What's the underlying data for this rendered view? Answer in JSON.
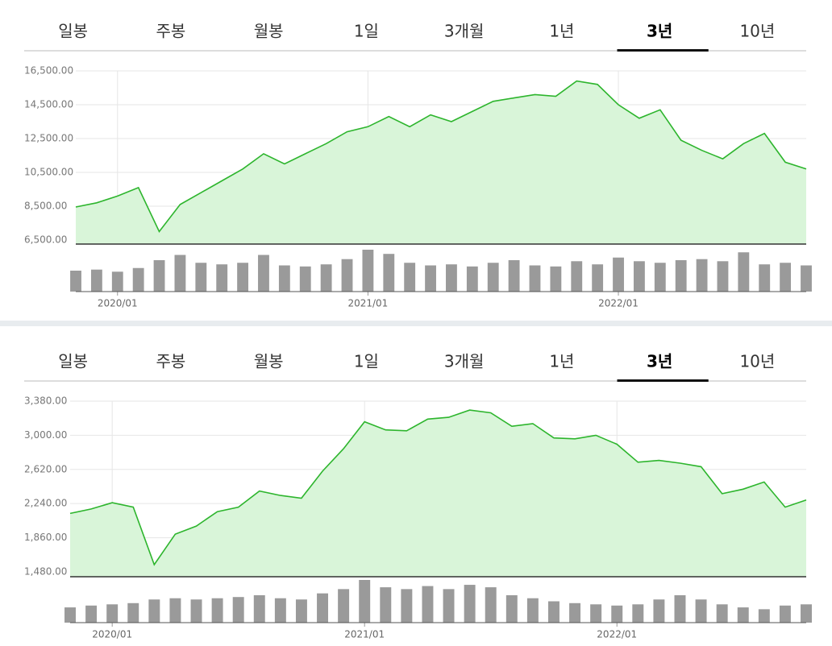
{
  "chart_data": [
    {
      "type": "line",
      "tabs": [
        "일봉",
        "주봉",
        "월봉",
        "1일",
        "3개월",
        "1년",
        "3년",
        "10년"
      ],
      "active_tab": 6,
      "categories": [
        null,
        null,
        "2020/01",
        null,
        null,
        null,
        null,
        null,
        null,
        null,
        null,
        null,
        null,
        null,
        "2021/01",
        null,
        null,
        null,
        null,
        null,
        null,
        null,
        null,
        null,
        null,
        null,
        "2022/01",
        null,
        null,
        null,
        null,
        null,
        null,
        null,
        null,
        null
      ],
      "values": [
        8450,
        8700,
        9100,
        9600,
        7000,
        8600,
        9300,
        10000,
        10700,
        11600,
        11000,
        11600,
        12200,
        12900,
        13200,
        13800,
        13200,
        13900,
        13500,
        14100,
        14700,
        14900,
        15100,
        15000,
        15900,
        15700,
        14500,
        13700,
        14200,
        12400,
        11800,
        11300,
        12200,
        12800,
        11100,
        10700
      ],
      "volumes": [
        40,
        42,
        38,
        45,
        60,
        70,
        55,
        52,
        55,
        70,
        50,
        48,
        52,
        62,
        80,
        72,
        55,
        50,
        52,
        48,
        55,
        60,
        50,
        48,
        58,
        52,
        65,
        58,
        55,
        60,
        62,
        58,
        75,
        52,
        55,
        50
      ],
      "color": "#2db52d",
      "fill_color": "#d9f5d9",
      "ylim": [
        6260,
        17450
      ],
      "yticks": [
        {
          "value": 6500,
          "label": "6,500.00"
        },
        {
          "value": 8500,
          "label": "8,500.00"
        },
        {
          "value": 10500,
          "label": "10,500.00"
        },
        {
          "value": 12500,
          "label": "12,500.00"
        },
        {
          "value": 14500,
          "label": "14,500.00"
        },
        {
          "value": 16500,
          "label": "16,500.00"
        }
      ],
      "grid": true
    },
    {
      "type": "line",
      "tabs": [
        "일봉",
        "주봉",
        "월봉",
        "1일",
        "3개월",
        "1년",
        "3년",
        "10년"
      ],
      "active_tab": 6,
      "categories": [
        null,
        null,
        "2020/01",
        null,
        null,
        null,
        null,
        null,
        null,
        null,
        null,
        null,
        null,
        null,
        "2021/01",
        null,
        null,
        null,
        null,
        null,
        null,
        null,
        null,
        null,
        null,
        null,
        "2022/01",
        null,
        null,
        null,
        null,
        null,
        null,
        null,
        null,
        null
      ],
      "values": [
        2130,
        2180,
        2250,
        2200,
        1560,
        1900,
        1990,
        2150,
        2200,
        2380,
        2330,
        2300,
        2600,
        2850,
        3150,
        3060,
        3050,
        3180,
        3200,
        3280,
        3250,
        3100,
        3130,
        2970,
        2960,
        3000,
        2900,
        2700,
        2720,
        2690,
        2650,
        2350,
        2400,
        2480,
        2200,
        2280
      ],
      "volumes": [
        25,
        28,
        30,
        32,
        38,
        40,
        38,
        40,
        42,
        45,
        40,
        38,
        48,
        55,
        70,
        58,
        55,
        60,
        55,
        62,
        58,
        45,
        40,
        35,
        32,
        30,
        28,
        30,
        38,
        45,
        38,
        30,
        25,
        22,
        28,
        30
      ],
      "color": "#2db52d",
      "fill_color": "#d9f5d9",
      "ylim": [
        1426,
        3559
      ],
      "yticks": [
        {
          "value": 1480,
          "label": "1,480.00"
        },
        {
          "value": 1860,
          "label": "1,860.00"
        },
        {
          "value": 2240,
          "label": "2,240.00"
        },
        {
          "value": 2620,
          "label": "2,620.00"
        },
        {
          "value": 3000,
          "label": "3,000.00"
        },
        {
          "value": 3380,
          "label": "3,380.00"
        }
      ],
      "grid": true
    }
  ]
}
